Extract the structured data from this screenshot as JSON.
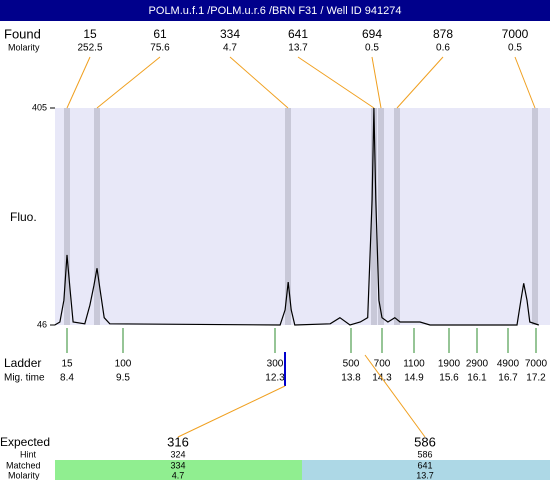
{
  "header": {
    "title": "POLM.u.f.1 /POLM.u.r.6 /BRN F31 / Well ID 941274"
  },
  "found": {
    "label": "Found",
    "molarity_label": "Molarity",
    "sizes": [
      15,
      61,
      334,
      641,
      694,
      878,
      7000
    ],
    "molarities": [
      252.5,
      75.6,
      4.7,
      13.7,
      0.5,
      0.6,
      0.5
    ]
  },
  "chart_data": {
    "type": "line",
    "y_label": "Fluo.",
    "ylim": [
      46,
      405
    ],
    "yticks": [
      46,
      405
    ],
    "color": "#000000",
    "x": [
      8.16,
      8.26,
      8.34,
      8.4,
      8.46,
      8.52,
      8.75,
      8.85,
      8.93,
      8.99,
      9.05,
      9.13,
      9.24,
      12.4,
      12.5,
      12.56,
      12.62,
      12.69,
      13.39,
      13.58,
      13.78,
      13.95,
      14.07,
      14.14,
      14.17,
      14.2,
      14.25,
      14.3,
      14.41,
      14.54,
      14.64,
      15.02,
      15.22,
      16.86,
      16.93,
      16.98,
      17.04,
      17.09,
      17.25
    ],
    "values": [
      46,
      51,
      87,
      162,
      104,
      51,
      48,
      79,
      112,
      140,
      104,
      58,
      48,
      46,
      71,
      117,
      71,
      46,
      48,
      58,
      46,
      51,
      58,
      253,
      405,
      253,
      87,
      58,
      51,
      58,
      51,
      51,
      46,
      46,
      87,
      115,
      87,
      51,
      46
    ]
  },
  "ladder": {
    "label": "Ladder",
    "mig_label": "Mig. time",
    "sizes": [
      15,
      100,
      300,
      500,
      700,
      1100,
      1900,
      2900,
      4900,
      7000
    ],
    "mig_times": [
      8.4,
      9.5,
      12.3,
      13.8,
      14.3,
      14.9,
      15.6,
      16.1,
      16.7,
      17.2
    ]
  },
  "expected": {
    "label": "Expected",
    "hint_label": "Hint",
    "matched_label": "Matched",
    "molarity_label": "Molarity",
    "sizes": [
      316,
      586
    ],
    "hints": [
      324,
      586
    ],
    "matched": [
      334,
      641
    ],
    "molarities": [
      4.7,
      13.7
    ]
  }
}
